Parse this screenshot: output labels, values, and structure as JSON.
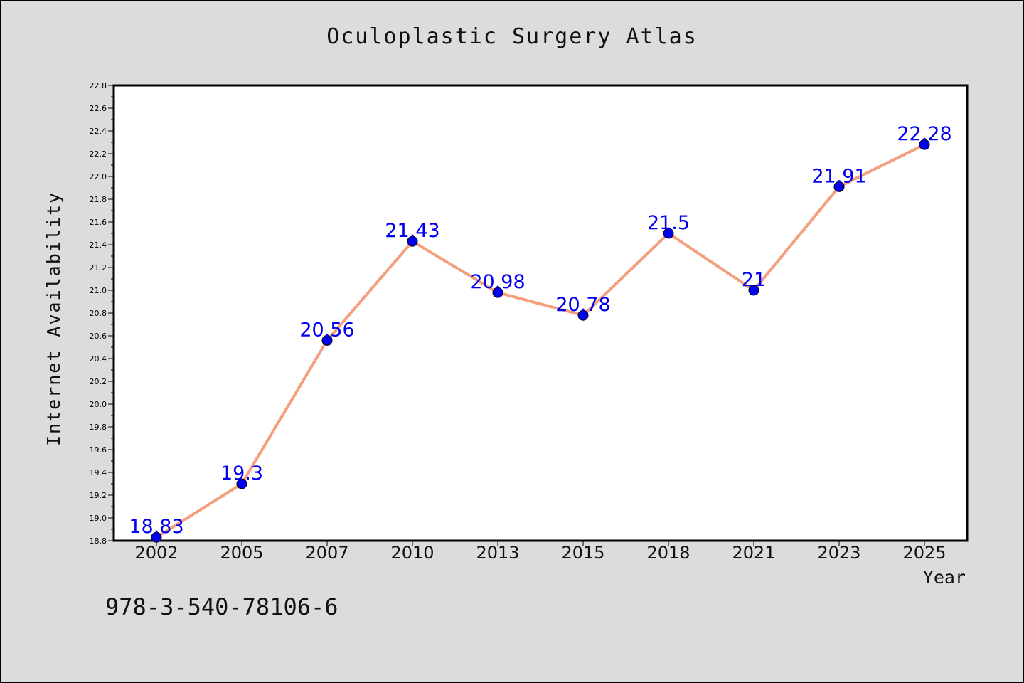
{
  "chart_data": {
    "type": "line",
    "title": "Oculoplastic Surgery Atlas",
    "xlabel": "Year",
    "ylabel": "Internet Availability",
    "categories": [
      "2002",
      "2005",
      "2007",
      "2010",
      "2013",
      "2015",
      "2018",
      "2021",
      "2023",
      "2025"
    ],
    "series": [
      {
        "values": [
          18.83,
          19.3,
          20.56,
          21.43,
          20.98,
          20.78,
          21.5,
          21,
          21.91,
          22.28
        ],
        "labels": [
          "18.83",
          "19.3",
          "20.56",
          "21.43",
          "20.98",
          "20.78",
          "21.5",
          "21",
          "21.91",
          "22.28"
        ]
      }
    ],
    "ylim": [
      18.8,
      22.8
    ],
    "yticks": [
      "18.8",
      "19.0",
      "19.2",
      "19.4",
      "19.6",
      "19.8",
      "20.0",
      "20.2",
      "20.4",
      "20.6",
      "20.8",
      "21.0",
      "21.2",
      "21.4",
      "21.6",
      "21.8",
      "22.0",
      "22.2",
      "22.4",
      "22.6",
      "22.8"
    ],
    "grid": false,
    "line_color": "#f4a07e",
    "marker_color": "#0000ee",
    "label_color": "#0000ee"
  },
  "footer": {
    "code": "978-3-540-78106-6"
  }
}
